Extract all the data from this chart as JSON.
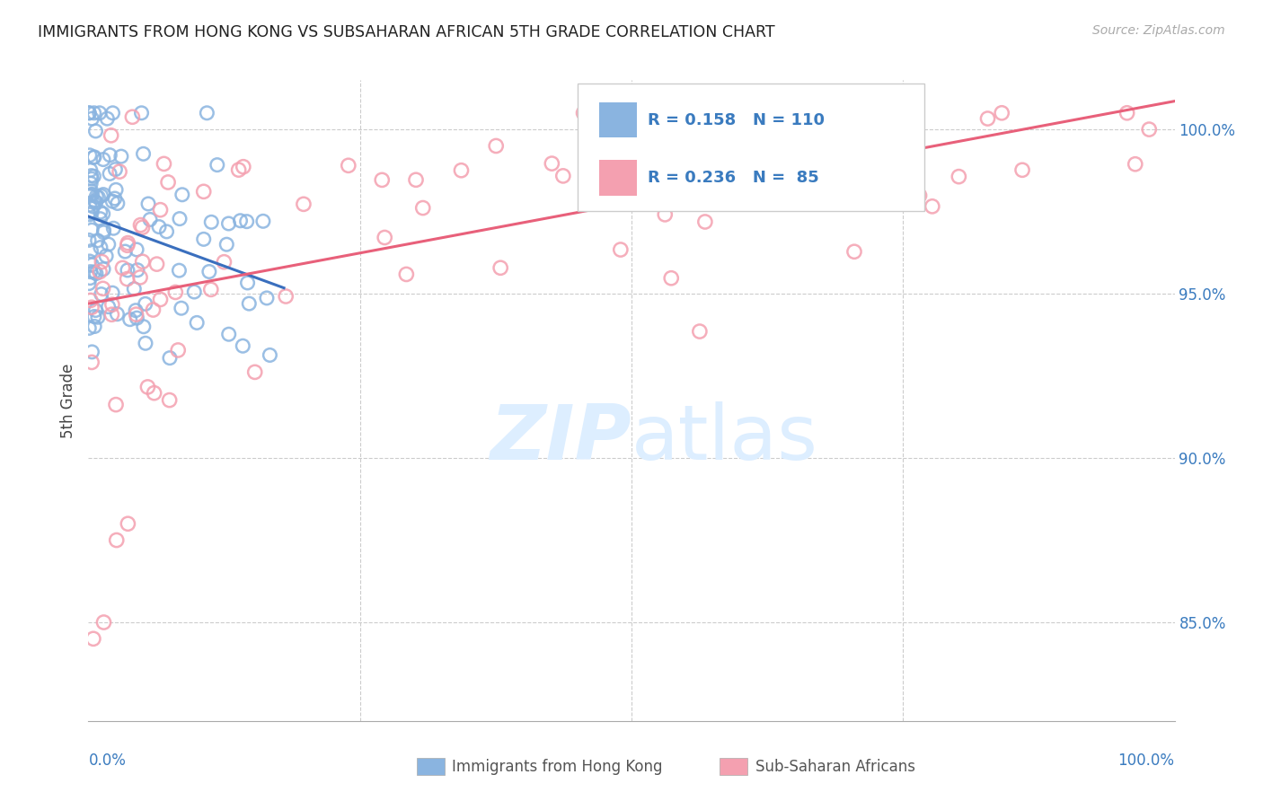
{
  "title": "IMMIGRANTS FROM HONG KONG VS SUBSAHARAN AFRICAN 5TH GRADE CORRELATION CHART",
  "source": "Source: ZipAtlas.com",
  "ylabel": "5th Grade",
  "xlim": [
    0,
    100
  ],
  "ylim": [
    82,
    101.5
  ],
  "yticks": [
    85.0,
    90.0,
    95.0,
    100.0
  ],
  "ytick_labels": [
    "85.0%",
    "90.0%",
    "95.0%",
    "100.0%"
  ],
  "hk_color": "#8ab4e0",
  "af_color": "#f4a0b0",
  "hk_line_color": "#3a6fbe",
  "af_line_color": "#e8607a",
  "watermark_zip": "ZIP",
  "watermark_atlas": "atlas",
  "watermark_color": "#ddeeff",
  "background_color": "#ffffff",
  "grid_color": "#cccccc"
}
